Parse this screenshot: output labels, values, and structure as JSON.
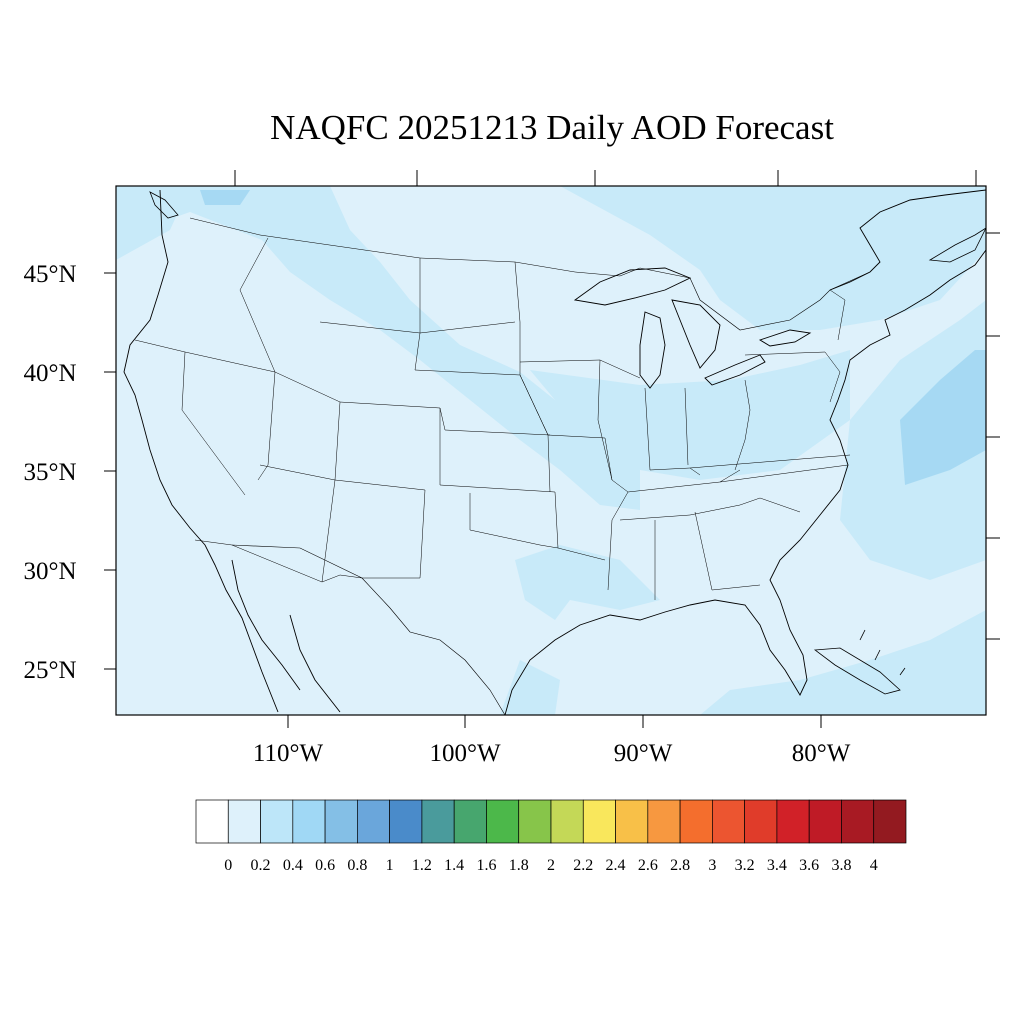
{
  "title": "NAQFC 20251213 Daily AOD Forecast",
  "lat_labels": [
    "45°N",
    "40°N",
    "35°N",
    "30°N",
    "25°N"
  ],
  "lon_labels": [
    "110°W",
    "100°W",
    "90°W",
    "80°W"
  ],
  "colorbar": {
    "colors": [
      "#ffffff",
      "#def1fb",
      "#bde6f9",
      "#a0d8f5",
      "#84bfe6",
      "#6aa6db",
      "#4a8bca",
      "#4a9b9c",
      "#47a66e",
      "#4cb84a",
      "#87c54a",
      "#c4d857",
      "#f9e75c",
      "#f8c048",
      "#f79840",
      "#f46e2d",
      "#ec5530",
      "#e03c2a",
      "#d12128",
      "#bf1b26",
      "#a81a23",
      "#931a20"
    ],
    "labels": [
      "0",
      "0.2",
      "0.4",
      "0.6",
      "0.8",
      "1",
      "1.2",
      "1.4",
      "1.6",
      "1.8",
      "2",
      "2.2",
      "2.4",
      "2.6",
      "2.8",
      "3",
      "3.2",
      "3.4",
      "3.6",
      "3.8",
      "4"
    ]
  }
}
